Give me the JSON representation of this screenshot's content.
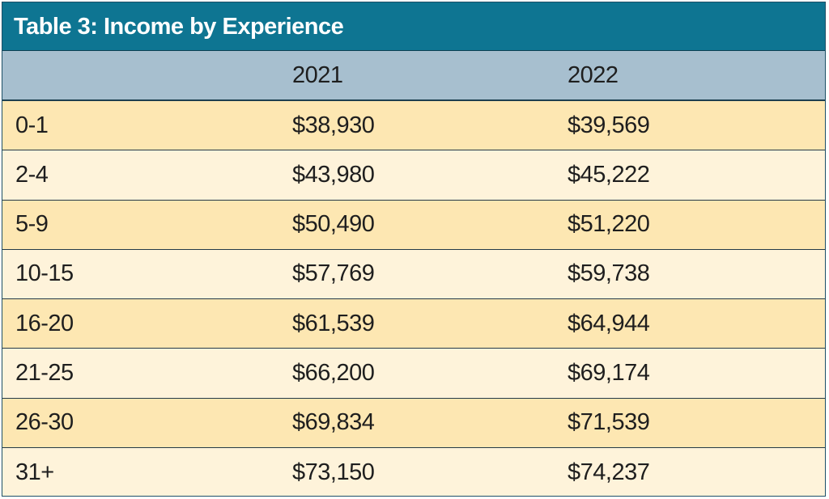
{
  "table": {
    "title": "Table 3: Income by Experience",
    "headers": [
      "",
      "2021",
      "2022"
    ],
    "rows": [
      {
        "label": "0-1",
        "y2021": "$38,930",
        "y2022": "$39,569"
      },
      {
        "label": "2-4",
        "y2021": "$43,980",
        "y2022": "$45,222"
      },
      {
        "label": "5-9",
        "y2021": "$50,490",
        "y2022": "$51,220"
      },
      {
        "label": "10-15",
        "y2021": "$57,769",
        "y2022": "$59,738"
      },
      {
        "label": "16-20",
        "y2021": "$61,539",
        "y2022": "$64,944"
      },
      {
        "label": "21-25",
        "y2021": "$66,200",
        "y2022": "$69,174"
      },
      {
        "label": "26-30",
        "y2021": "$69,834",
        "y2022": "$71,539"
      },
      {
        "label": "31+",
        "y2021": "$73,150",
        "y2022": "$74,237"
      }
    ]
  },
  "colors": {
    "title_bg": "#0e7592",
    "header_bg": "#a7bfcf",
    "row_odd": "#fde7b2",
    "row_even": "#fef3da"
  }
}
